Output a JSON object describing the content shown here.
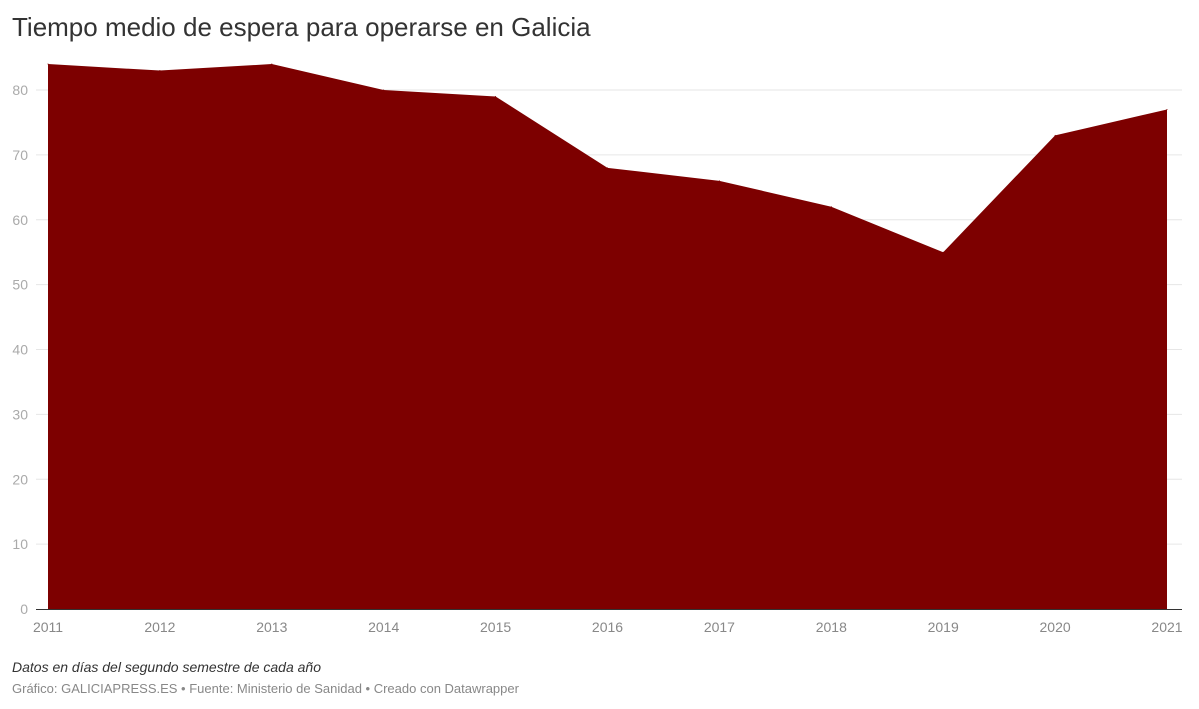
{
  "title": "Tiempo medio de espera para operarse en Galicia",
  "notes": "Datos en días del segundo semestre de cada año",
  "byline": "Gráfico: GALICIAPRESS.ES • Fuente: Ministerio de Sanidad • Creado con Datawrapper",
  "chart_data": {
    "type": "area",
    "title": "Tiempo medio de espera para operarse en Galicia",
    "x": [
      "2011",
      "2012",
      "2013",
      "2014",
      "2015",
      "2016",
      "2017",
      "2018",
      "2019",
      "2020",
      "2021"
    ],
    "values": [
      84,
      83,
      84,
      80,
      79,
      68,
      66,
      62,
      55,
      73,
      77
    ],
    "yticks": [
      0,
      10,
      20,
      30,
      40,
      50,
      60,
      70,
      80
    ],
    "ylim": [
      0,
      85
    ],
    "grid": true,
    "color": "#7d0000"
  }
}
